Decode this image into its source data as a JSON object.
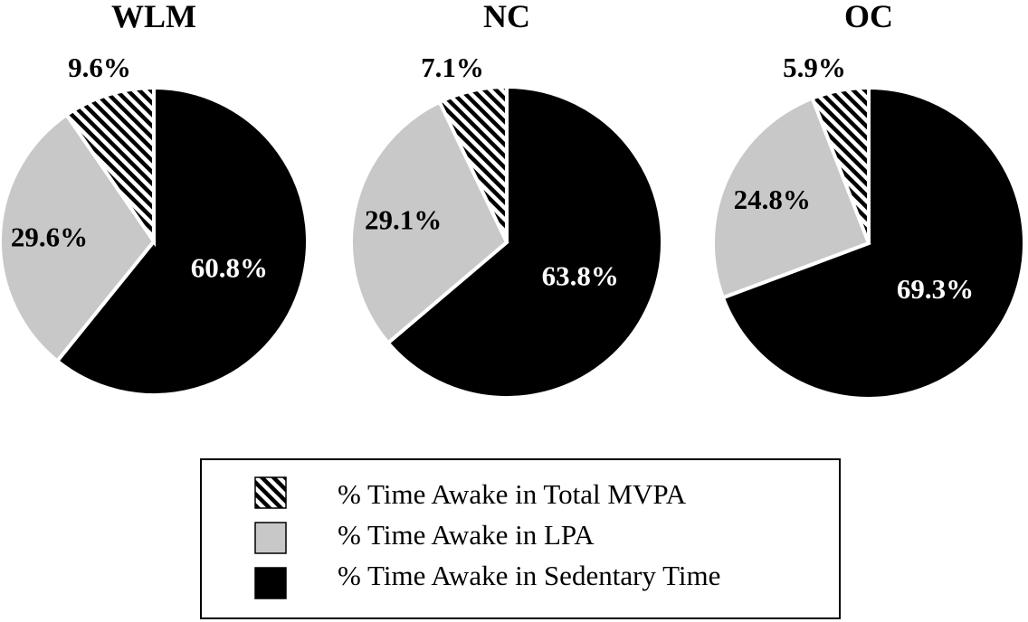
{
  "colors": {
    "mvpa": "hatch-black-white",
    "lpa": "#c8c8c8",
    "sedentary": "#000000"
  },
  "legend": [
    {
      "key": "mvpa",
      "label": "% Time Awake in Total MVPA",
      "swatch": "hatch"
    },
    {
      "key": "lpa",
      "label": "% Time Awake in LPA",
      "swatch": "#c8c8c8"
    },
    {
      "key": "sedentary",
      "label": "% Time Awake in Sedentary Time",
      "swatch": "#000000"
    }
  ],
  "chart_data": [
    {
      "type": "pie",
      "title": "WLM",
      "slices": [
        {
          "key": "sedentary",
          "name": "% Time Awake in Sedentary Time",
          "value": 60.8,
          "label": "60.8%"
        },
        {
          "key": "lpa",
          "name": "% Time Awake in LPA",
          "value": 29.6,
          "label": "29.6%"
        },
        {
          "key": "mvpa",
          "name": "% Time Awake in Total MVPA",
          "value": 9.6,
          "label": "9.6%"
        }
      ]
    },
    {
      "type": "pie",
      "title": "NC",
      "slices": [
        {
          "key": "sedentary",
          "name": "% Time Awake in Sedentary Time",
          "value": 63.8,
          "label": "63.8%"
        },
        {
          "key": "lpa",
          "name": "% Time Awake in LPA",
          "value": 29.1,
          "label": "29.1%"
        },
        {
          "key": "mvpa",
          "name": "% Time Awake in Total MVPA",
          "value": 7.1,
          "label": "7.1%"
        }
      ]
    },
    {
      "type": "pie",
      "title": "OC",
      "slices": [
        {
          "key": "sedentary",
          "name": "% Time Awake in Sedentary Time",
          "value": 69.3,
          "label": "69.3%"
        },
        {
          "key": "lpa",
          "name": "% Time Awake in LPA",
          "value": 24.8,
          "label": "24.8%"
        },
        {
          "key": "mvpa",
          "name": "% Time Awake in Total MVPA",
          "value": 5.9,
          "label": "5.9%"
        }
      ]
    }
  ]
}
